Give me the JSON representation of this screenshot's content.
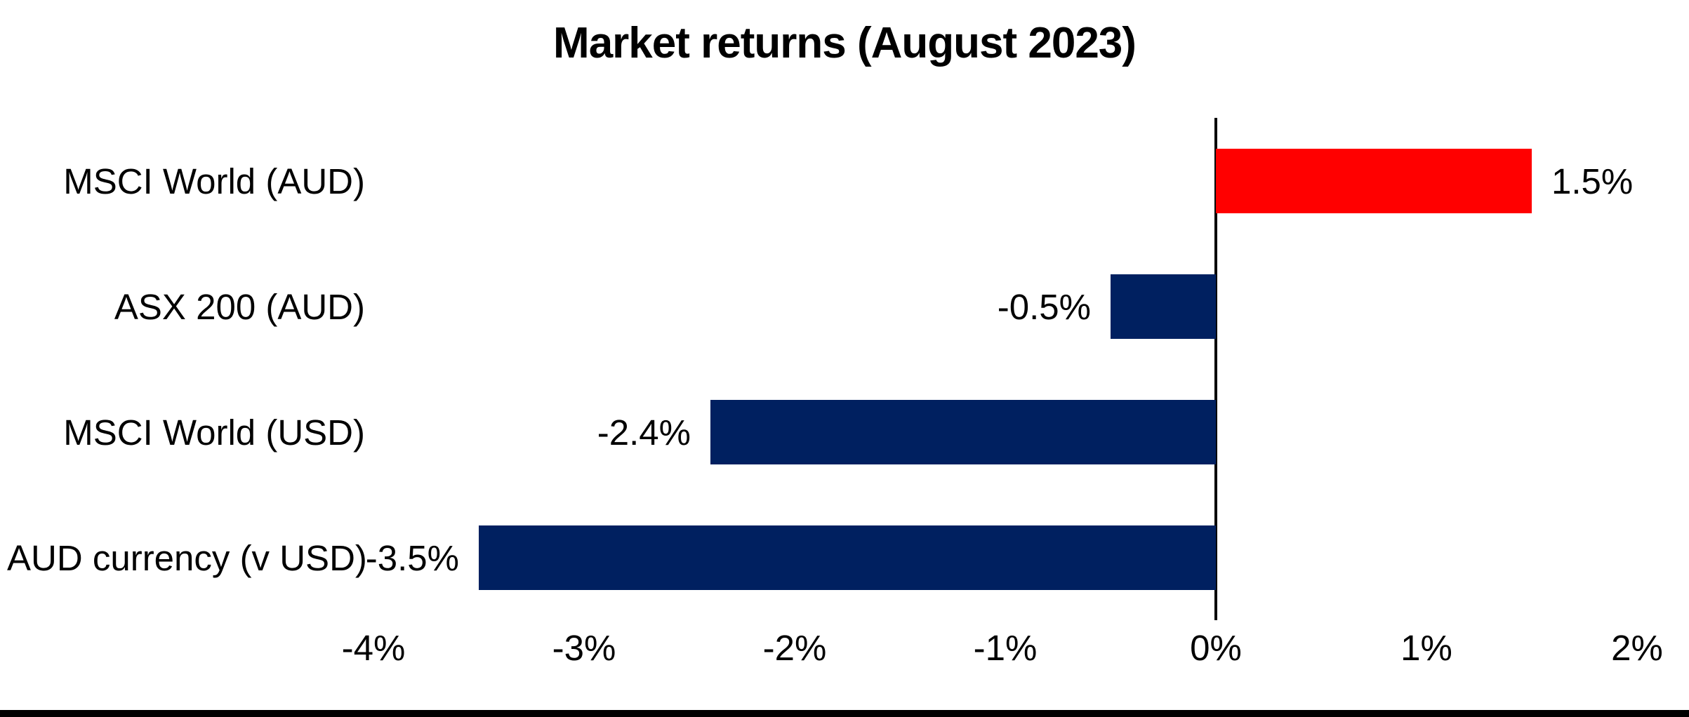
{
  "page": {
    "background": "#ffffff",
    "bottom_strip_color": "#000000"
  },
  "chart_data": {
    "type": "bar",
    "orientation": "horizontal",
    "title": "Market returns (August 2023)",
    "categories": [
      "MSCI World (AUD)",
      "ASX 200 (AUD)",
      "MSCI World (USD)",
      "AUD currency (v USD)"
    ],
    "values": [
      1.5,
      -0.5,
      -2.4,
      -3.5
    ],
    "data_labels": [
      "1.5%",
      "-0.5%",
      "-2.4%",
      "-3.5%"
    ],
    "x_ticks": [
      -4,
      -3,
      -2,
      -1,
      0,
      1,
      2
    ],
    "x_tick_labels": [
      "-4%",
      "-3%",
      "-2%",
      "-1%",
      "0%",
      "1%",
      "2%"
    ],
    "xlim": [
      -4,
      2
    ],
    "grid": false,
    "legend": false,
    "value_axis_label_position": "below-plot",
    "colors": {
      "positive": "#ff0000",
      "negative": "#002060",
      "axis_line": "#000000",
      "text": "#000000"
    }
  }
}
